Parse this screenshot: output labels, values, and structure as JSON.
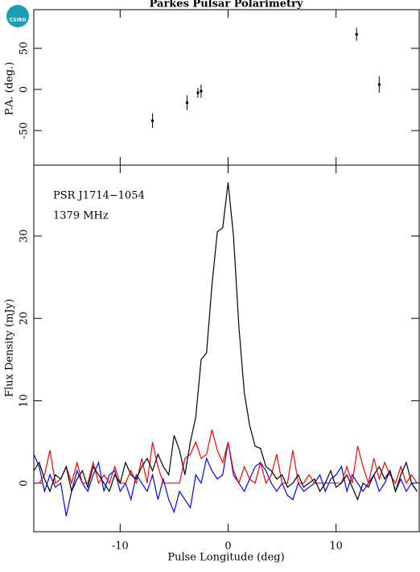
{
  "logo": "CSIRO",
  "chart_data": [
    {
      "type": "scatter",
      "title": "Parkes Pulsar Polarimetry",
      "y_label": "P.A. (deg.)",
      "series": [
        {
          "name": "P.A.",
          "color": "#000000",
          "x": [
            -7,
            -3.8,
            -2.8,
            -2.5,
            11.9,
            14
          ],
          "values": [
            -38,
            -16,
            -4,
            -2,
            67,
            6
          ],
          "errors": [
            9,
            9,
            6,
            8,
            8,
            10
          ]
        }
      ],
      "xlim": [
        -18,
        17.7
      ],
      "xticks": [
        -10,
        0,
        10
      ],
      "ylim": [
        -92,
        97
      ],
      "yticks": [
        -50,
        0,
        50
      ]
    },
    {
      "type": "line",
      "x_label": "Pulse Longitude (deg)",
      "y_label": "Flux Density (mJy)",
      "annotations": [
        "PSR J1714−1054",
        "1379 MHz"
      ],
      "x": [
        -18,
        -17.5,
        -17,
        -16.5,
        -16,
        -15.5,
        -15,
        -14.5,
        -14,
        -13.5,
        -13,
        -12.5,
        -12,
        -11.5,
        -11,
        -10.5,
        -10,
        -9.5,
        -9,
        -8.5,
        -8,
        -7.5,
        -7,
        -6.5,
        -6,
        -5.5,
        -5,
        -4.5,
        -4,
        -3.5,
        -3,
        -2.5,
        -2,
        -1.5,
        -1,
        -0.5,
        0,
        0.5,
        1,
        1.5,
        2,
        2.5,
        3,
        3.5,
        4,
        4.5,
        5,
        5.5,
        6,
        6.5,
        7,
        7.5,
        8,
        8.5,
        9,
        9.5,
        10,
        10.5,
        11,
        11.5,
        12,
        12.5,
        13,
        13.5,
        14,
        14.5,
        15,
        15.5,
        16,
        16.5,
        17,
        17.5
      ],
      "series": [
        {
          "name": "Total intensity",
          "color": "#000000",
          "values": [
            1.5,
            2.5,
            0.5,
            -1,
            1,
            0.5,
            2,
            -1,
            0.5,
            1.5,
            -0.5,
            2,
            1,
            0,
            -1,
            1,
            0,
            2.5,
            1,
            0.5,
            2,
            3,
            1.5,
            3.5,
            2,
            1,
            5.8,
            4,
            1,
            5,
            8,
            15,
            15.8,
            24,
            30.5,
            31,
            36.5,
            30,
            19,
            11,
            7,
            4.5,
            4.2,
            2,
            1.5,
            0.5,
            1,
            -0.5,
            0,
            1,
            -0.5,
            0,
            0.5,
            -1,
            0,
            1.5,
            -0.5,
            0,
            1,
            -0.5,
            -2,
            0,
            -0.5,
            1,
            2,
            0.5,
            1.5,
            -1,
            1,
            2.5,
            0,
            -1
          ]
        },
        {
          "name": "Linear polarization",
          "color": "#ff0000",
          "values": [
            0,
            0,
            1,
            4,
            0,
            0.5,
            2,
            0,
            2.5,
            0,
            0,
            2.5,
            0,
            1,
            0,
            2,
            0,
            0,
            1.5,
            0,
            3,
            0,
            5,
            2,
            0,
            0,
            0,
            0,
            3,
            3.5,
            5,
            3,
            3.5,
            6.5,
            4,
            2.5,
            5,
            1.5,
            0,
            2,
            0.5,
            0,
            2.5,
            0,
            1,
            3.5,
            0,
            0,
            4,
            0,
            0,
            1,
            0,
            0,
            0,
            0,
            0,
            0,
            2,
            0,
            4.5,
            2,
            0,
            3,
            0.5,
            2.5,
            1,
            0,
            2,
            0,
            1,
            0
          ]
        },
        {
          "name": "Circular polarization",
          "color": "#0000ff",
          "values": [
            3.5,
            2,
            -1,
            1,
            -0.5,
            0,
            -4,
            -1,
            1.5,
            0,
            -1,
            1,
            2.5,
            -1,
            1,
            1.5,
            -1,
            0,
            -2,
            1,
            0,
            -1,
            1,
            -2,
            0.5,
            -2,
            -3.5,
            -1,
            -2,
            -3,
            1,
            0,
            3,
            1.5,
            0.5,
            1,
            5,
            1,
            0,
            -1,
            0.5,
            2,
            2.5,
            1.5,
            0,
            -1,
            0,
            -1.5,
            -2,
            0,
            -1,
            -0.5,
            0,
            1,
            -1,
            0.5,
            1,
            2,
            -1,
            1,
            0,
            -1,
            0,
            1,
            -1,
            0,
            1.5,
            -1,
            0.5,
            -1,
            0,
            -1
          ]
        }
      ],
      "xlim": [
        -18,
        17.7
      ],
      "xticks": [
        -10,
        0,
        10
      ],
      "ylim": [
        -5.9,
        38.6
      ],
      "yticks": [
        0,
        10,
        20,
        30
      ]
    }
  ]
}
